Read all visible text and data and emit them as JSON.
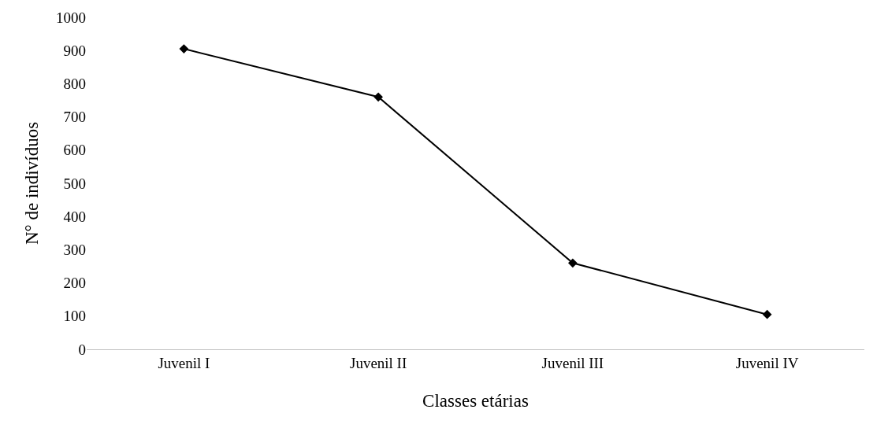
{
  "chart_data": {
    "type": "line",
    "xlabel": "Classes etárias",
    "ylabel": "N° de indivíduos",
    "categories": [
      "Juvenil I",
      "Juvenil II",
      "Juvenil III",
      "Juvenil IV"
    ],
    "series": [
      {
        "color": "#000000",
        "values": [
          905,
          760,
          260,
          105
        ]
      }
    ],
    "ylim": [
      0,
      1000
    ],
    "yticks": [
      0,
      100,
      200,
      300,
      400,
      500,
      600,
      700,
      800,
      900,
      1000
    ],
    "marker": "diamond",
    "line_style": "solid"
  }
}
